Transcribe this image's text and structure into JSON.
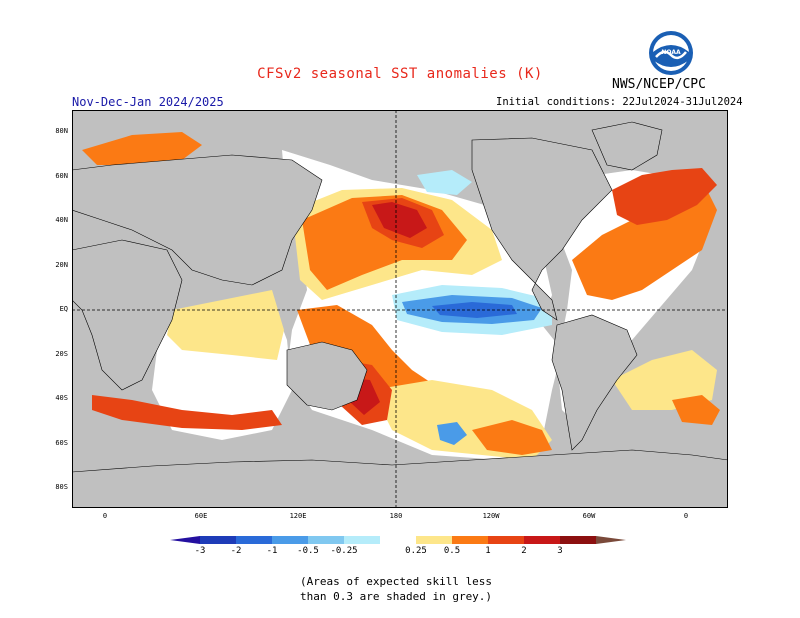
{
  "header": {
    "title": "CFSv2 seasonal SST anomalies (K)",
    "agency": "NWS/NCEP/CPC",
    "season": "Nov-Dec-Jan 2024/2025",
    "initial_conditions": "Initial conditions: 22Jul2024-31Jul2024"
  },
  "map": {
    "y_labels": [
      "80N",
      "60N",
      "40N",
      "20N",
      "EQ",
      "20S",
      "40S",
      "60S",
      "80S"
    ],
    "x_labels": [
      "0",
      "60E",
      "120E",
      "180",
      "120W",
      "60W",
      "0"
    ],
    "colors": {
      "land": "#c0c0c0",
      "ocean_neutral": "#ffffff",
      "anom_0.25": "#fde68a",
      "anom_0.5": "#fb7a14",
      "anom_1": "#e74414",
      "anom_2": "#c81818",
      "anom_3": "#8c1010",
      "anom_neg_0.25": "#b5ecfa",
      "anom_neg_0.5": "#80c8f0",
      "anom_neg_1": "#4a9be8",
      "anom_neg_2": "#2a6ad8",
      "anom_neg_3": "#1e3cb8"
    }
  },
  "colorbar": {
    "labels": [
      "-3",
      "-2",
      "-1",
      "-0.5",
      "-0.25",
      "0.25",
      "0.5",
      "1",
      "2",
      "3"
    ],
    "colors": [
      "#2410a0",
      "#1e3cb8",
      "#2a6ad8",
      "#4a9be8",
      "#80c8f0",
      "#b5ecfa",
      "#ffffff",
      "#fde68a",
      "#fb7a14",
      "#e74414",
      "#c81818",
      "#8c1010",
      "#7a4a3a"
    ]
  },
  "footnote": {
    "line1": "(Areas of expected skill less",
    "line2": "than 0.3 are shaded in grey.)"
  }
}
